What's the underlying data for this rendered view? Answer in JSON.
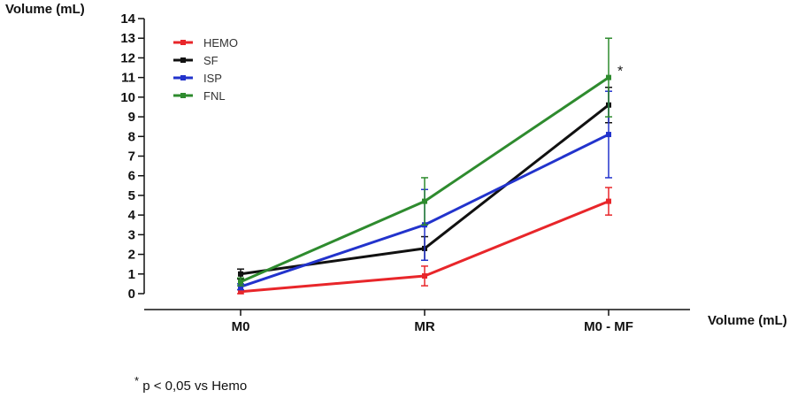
{
  "chart_data": {
    "type": "line",
    "ylabel": "Volume (mL)",
    "xlabel": "Volume (mL)",
    "categories": [
      "M0",
      "MR",
      "M0 - MF"
    ],
    "ylim": [
      0,
      14
    ],
    "yticks": [
      0,
      1,
      2,
      3,
      4,
      5,
      6,
      7,
      8,
      9,
      10,
      11,
      12,
      13,
      14
    ],
    "series": [
      {
        "name": "HEMO",
        "color": "#e8262a",
        "values": [
          0.1,
          0.9,
          4.7
        ],
        "errors": [
          0.1,
          0.5,
          0.7
        ]
      },
      {
        "name": "SF",
        "color": "#111111",
        "values": [
          1.0,
          2.3,
          9.6
        ],
        "errors": [
          0.25,
          0.6,
          0.9
        ]
      },
      {
        "name": "ISP",
        "color": "#2233cc",
        "values": [
          0.35,
          3.5,
          8.1
        ],
        "errors": [
          0.15,
          1.8,
          2.2
        ]
      },
      {
        "name": "FNL",
        "color": "#2e8b2e",
        "values": [
          0.6,
          4.7,
          11.0
        ],
        "errors": [
          0.2,
          1.2,
          2.0
        ]
      }
    ],
    "annotation": "*",
    "legend_position": "top-left"
  },
  "footnote": {
    "star": "*",
    "text": " p < 0,05 vs Hemo"
  }
}
